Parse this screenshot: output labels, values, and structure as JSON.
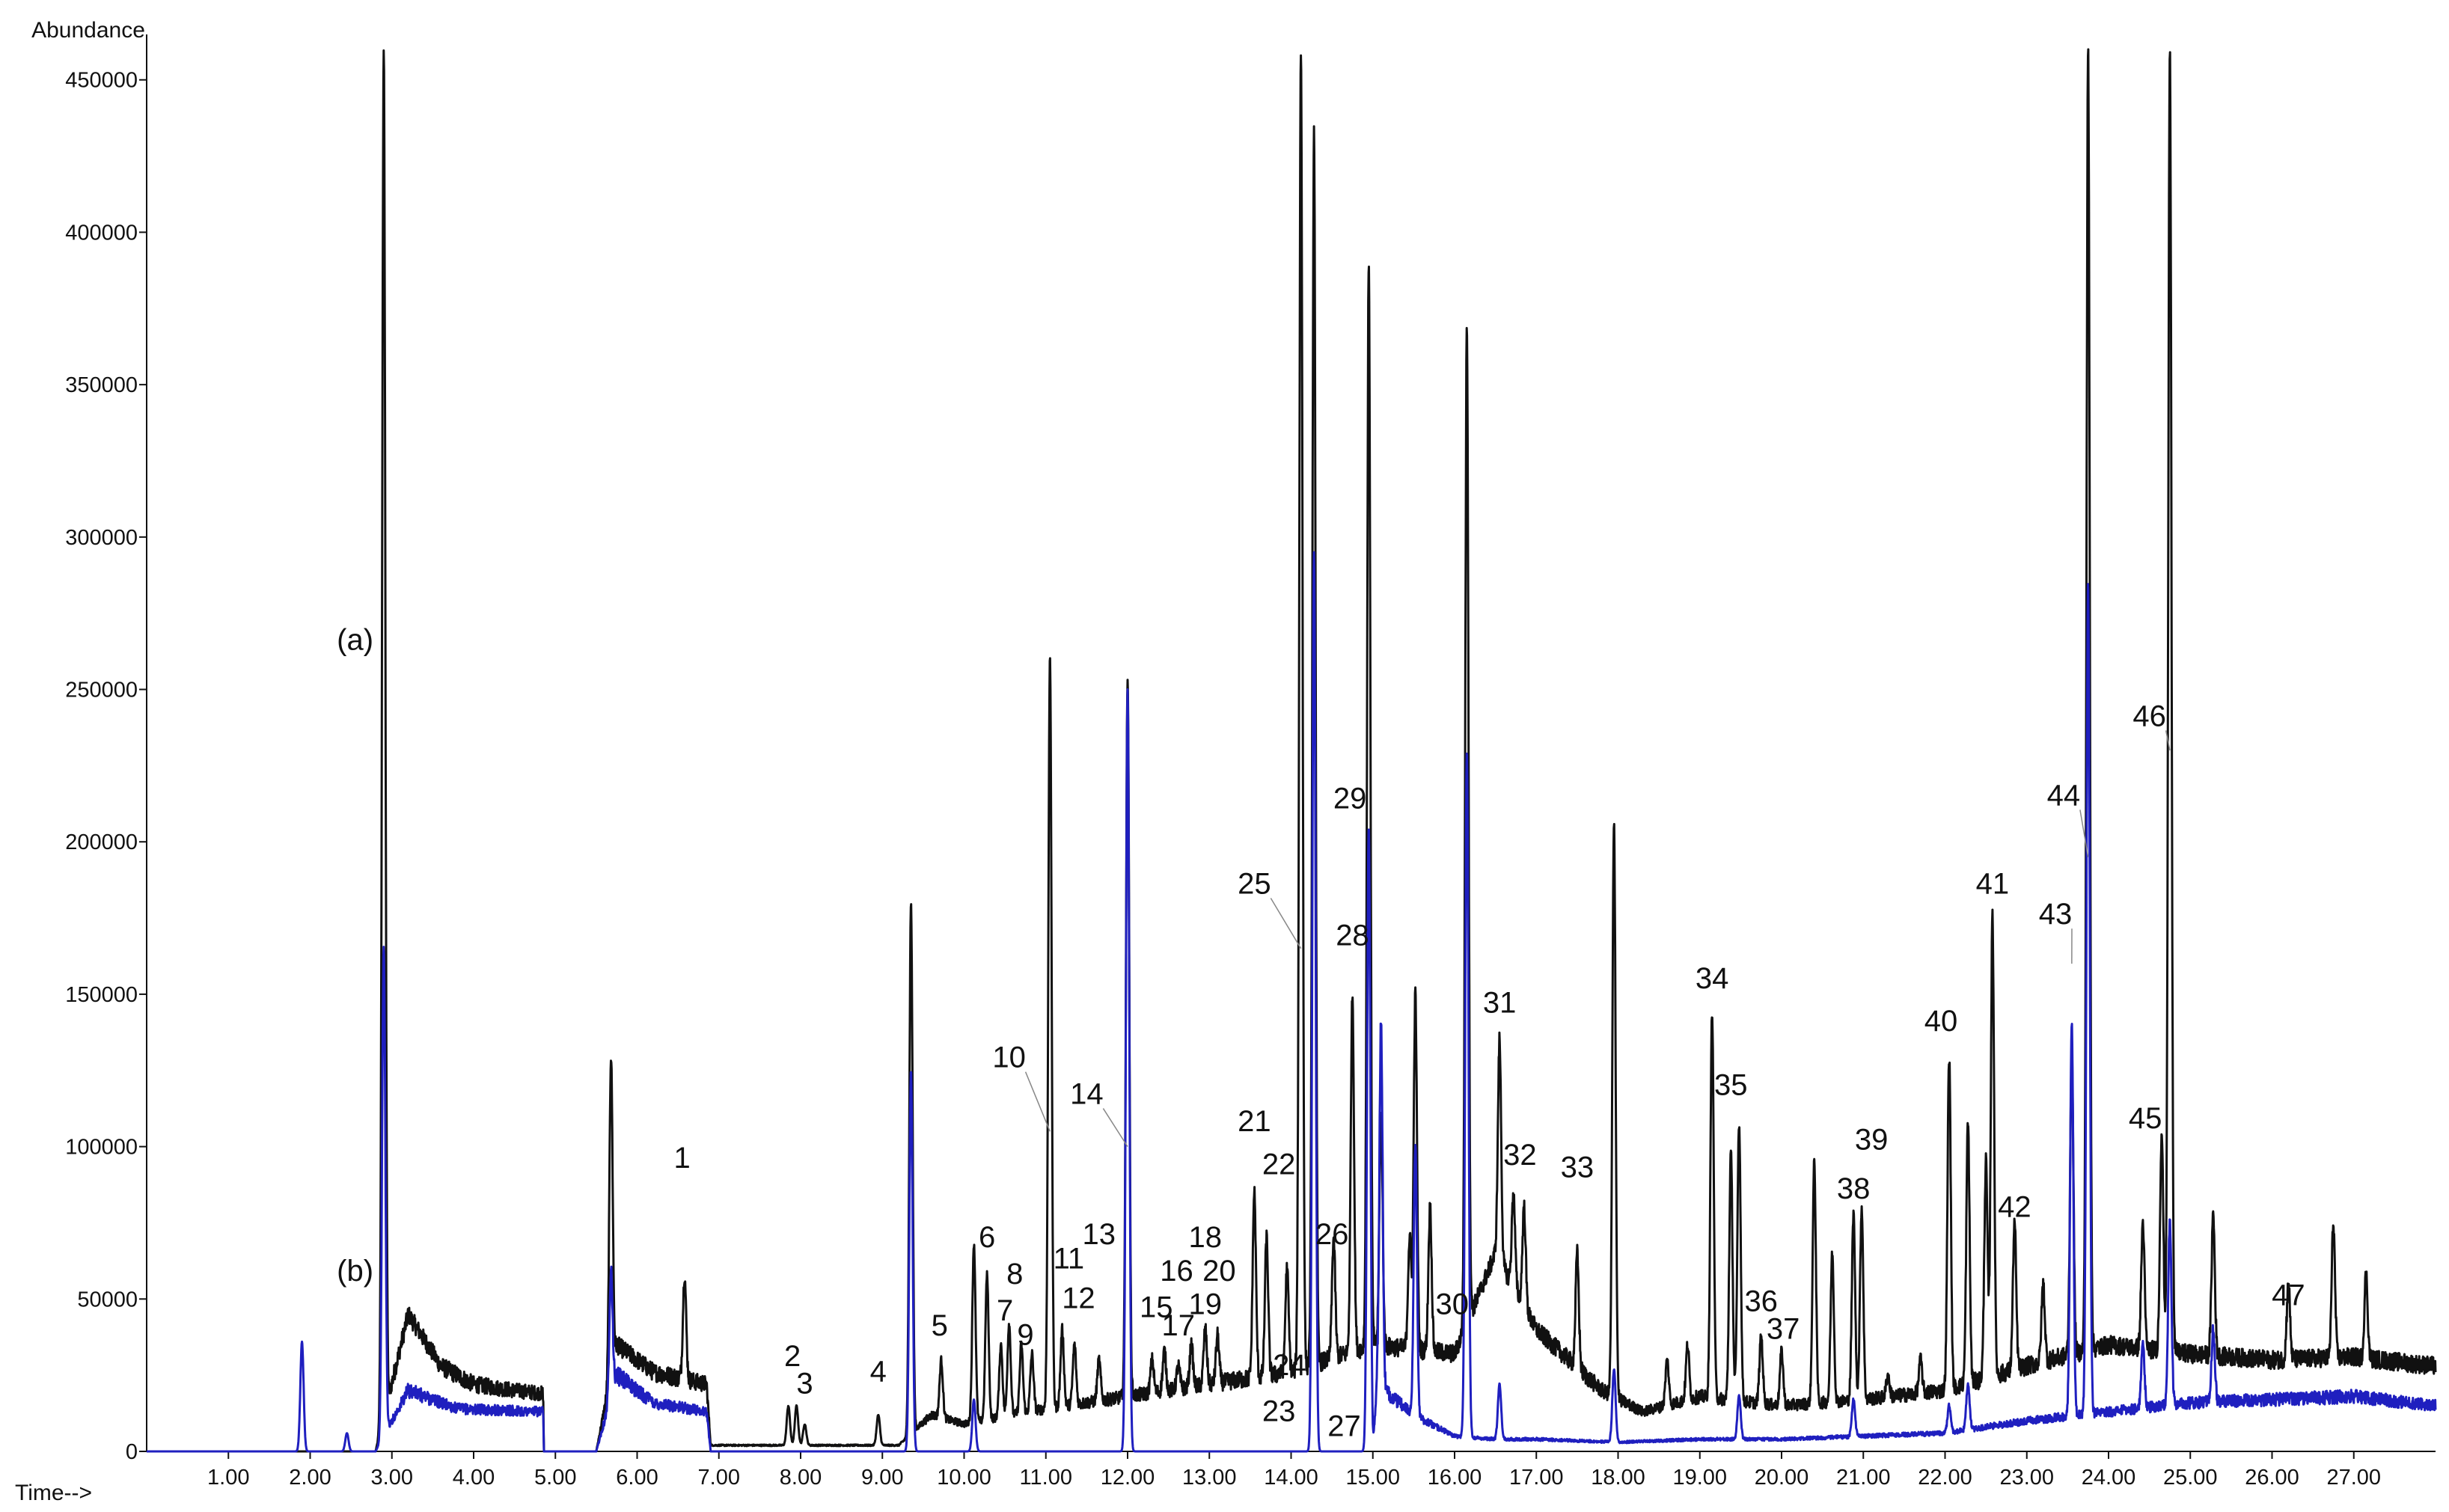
{
  "chart_data": {
    "type": "line",
    "ylabel": "Abundance",
    "xlabel": "Time-->",
    "xlim": [
      0,
      28.0
    ],
    "ylim": [
      0,
      460000
    ],
    "x_ticks": [
      1.0,
      2.0,
      3.0,
      4.0,
      5.0,
      6.0,
      7.0,
      8.0,
      9.0,
      10.0,
      11.0,
      12.0,
      13.0,
      14.0,
      15.0,
      16.0,
      17.0,
      18.0,
      19.0,
      20.0,
      21.0,
      22.0,
      23.0,
      24.0,
      25.0,
      26.0,
      27.0
    ],
    "x_tick_labels": [
      "1.00",
      "2.00",
      "3.00",
      "4.00",
      "5.00",
      "6.00",
      "7.00",
      "8.00",
      "9.00",
      "10.00",
      "11.00",
      "12.00",
      "13.00",
      "14.00",
      "15.00",
      "16.00",
      "17.00",
      "18.00",
      "19.00",
      "20.00",
      "21.00",
      "22.00",
      "23.00",
      "24.00",
      "25.00",
      "26.00",
      "27.00"
    ],
    "y_ticks": [
      0,
      50000,
      100000,
      150000,
      200000,
      250000,
      300000,
      350000,
      400000,
      450000
    ],
    "y_tick_labels": [
      "0",
      "50000",
      "100000",
      "150000",
      "200000",
      "250000",
      "300000",
      "350000",
      "400000",
      "450000"
    ],
    "grid": false,
    "series": [
      {
        "name": "(a)",
        "color": "#111111",
        "baseline": [
          [
            0.0,
            0
          ],
          [
            2.8,
            0
          ],
          [
            3.2,
            45000
          ],
          [
            3.6,
            28000
          ],
          [
            4.0,
            22000
          ],
          [
            4.5,
            20000
          ],
          [
            4.85,
            19000
          ],
          [
            4.86,
            0
          ],
          [
            5.5,
            0
          ],
          [
            5.75,
            35000
          ],
          [
            6.2,
            26000
          ],
          [
            6.85,
            22000
          ],
          [
            6.9,
            2000
          ],
          [
            9.2,
            2000
          ],
          [
            9.6,
            12000
          ],
          [
            10.0,
            9000
          ],
          [
            11.0,
            14000
          ],
          [
            12.0,
            18000
          ],
          [
            13.0,
            22000
          ],
          [
            14.0,
            26000
          ],
          [
            15.0,
            35000
          ],
          [
            16.0,
            32000
          ],
          [
            16.5,
            65000
          ],
          [
            17.0,
            40000
          ],
          [
            17.8,
            20000
          ],
          [
            18.3,
            13000
          ],
          [
            19.0,
            18000
          ],
          [
            20.0,
            15000
          ],
          [
            21.0,
            17000
          ],
          [
            22.0,
            20000
          ],
          [
            23.0,
            28000
          ],
          [
            24.0,
            35000
          ],
          [
            25.0,
            32000
          ],
          [
            26.0,
            30000
          ],
          [
            27.0,
            31000
          ],
          [
            28.0,
            28000
          ]
        ],
        "peaks": [
          [
            2.9,
            460000
          ],
          [
            5.68,
            130000
          ],
          [
            6.58,
            58000
          ],
          [
            7.85,
            15000
          ],
          [
            7.95,
            15000
          ],
          [
            8.05,
            9000
          ],
          [
            8.95,
            12000
          ],
          [
            9.35,
            180000
          ],
          [
            9.72,
            30000
          ],
          [
            10.12,
            68000
          ],
          [
            10.28,
            58000
          ],
          [
            10.45,
            35000
          ],
          [
            10.55,
            42000
          ],
          [
            10.7,
            35000
          ],
          [
            10.83,
            32000
          ],
          [
            11.05,
            262000
          ],
          [
            11.2,
            40000
          ],
          [
            11.35,
            35000
          ],
          [
            11.65,
            30000
          ],
          [
            12.0,
            255000
          ],
          [
            12.3,
            30000
          ],
          [
            12.45,
            33000
          ],
          [
            12.62,
            28000
          ],
          [
            12.78,
            35000
          ],
          [
            12.95,
            40000
          ],
          [
            13.1,
            38000
          ],
          [
            13.55,
            85000
          ],
          [
            13.7,
            70000
          ],
          [
            13.95,
            60000
          ],
          [
            14.12,
            460000
          ],
          [
            14.28,
            432000
          ],
          [
            14.52,
            70000
          ],
          [
            14.75,
            150000
          ],
          [
            14.95,
            390000
          ],
          [
            15.1,
            110000
          ],
          [
            15.45,
            70000
          ],
          [
            15.52,
            150000
          ],
          [
            15.7,
            80000
          ],
          [
            16.15,
            370000
          ],
          [
            16.55,
            135000
          ],
          [
            16.72,
            85000
          ],
          [
            16.85,
            80000
          ],
          [
            17.5,
            65000
          ],
          [
            17.95,
            205000
          ],
          [
            18.6,
            30000
          ],
          [
            18.85,
            35000
          ],
          [
            19.15,
            145000
          ],
          [
            19.38,
            98000
          ],
          [
            19.48,
            108000
          ],
          [
            19.75,
            38000
          ],
          [
            20.0,
            33000
          ],
          [
            20.4,
            95000
          ],
          [
            20.62,
            65000
          ],
          [
            20.88,
            78000
          ],
          [
            20.98,
            80000
          ],
          [
            21.3,
            25000
          ],
          [
            21.7,
            30000
          ],
          [
            22.05,
            130000
          ],
          [
            22.28,
            108000
          ],
          [
            22.5,
            95000
          ],
          [
            22.58,
            176000
          ],
          [
            22.85,
            75000
          ],
          [
            23.2,
            55000
          ],
          [
            23.55,
            132000
          ],
          [
            23.75,
            460000
          ],
          [
            24.42,
            75000
          ],
          [
            24.65,
            105000
          ],
          [
            24.75,
            460000
          ],
          [
            25.28,
            78000
          ],
          [
            26.2,
            55000
          ],
          [
            26.75,
            75000
          ],
          [
            27.15,
            58000
          ]
        ]
      },
      {
        "name": "(b)",
        "color": "#1f1fbf",
        "baseline": [
          [
            0.0,
            0
          ],
          [
            2.8,
            0
          ],
          [
            3.2,
            20000
          ],
          [
            3.8,
            14000
          ],
          [
            4.85,
            13000
          ],
          [
            4.86,
            0
          ],
          [
            5.5,
            0
          ],
          [
            5.75,
            25000
          ],
          [
            6.2,
            16000
          ],
          [
            6.85,
            13000
          ],
          [
            6.9,
            0
          ],
          [
            15.0,
            0
          ],
          [
            15.05,
            22000
          ],
          [
            15.5,
            12000
          ],
          [
            16.0,
            5000
          ],
          [
            16.5,
            4000
          ],
          [
            17.0,
            4000
          ],
          [
            18.0,
            3000
          ],
          [
            19.0,
            4000
          ],
          [
            20.0,
            4000
          ],
          [
            21.0,
            5000
          ],
          [
            22.0,
            6000
          ],
          [
            23.0,
            10000
          ],
          [
            24.0,
            13000
          ],
          [
            25.0,
            16000
          ],
          [
            26.0,
            17000
          ],
          [
            27.0,
            18000
          ],
          [
            28.0,
            15000
          ]
        ],
        "peaks": [
          [
            1.9,
            36000
          ],
          [
            2.45,
            6000
          ],
          [
            2.9,
            165000
          ],
          [
            5.68,
            60000
          ],
          [
            9.35,
            125000
          ],
          [
            10.12,
            17000
          ],
          [
            12.0,
            250000
          ],
          [
            14.28,
            295000
          ],
          [
            14.95,
            205000
          ],
          [
            15.1,
            140000
          ],
          [
            15.52,
            100000
          ],
          [
            16.15,
            230000
          ],
          [
            16.55,
            22000
          ],
          [
            17.95,
            27000
          ],
          [
            19.48,
            18000
          ],
          [
            20.88,
            17000
          ],
          [
            22.05,
            15000
          ],
          [
            22.28,
            22000
          ],
          [
            23.55,
            140000
          ],
          [
            23.75,
            285000
          ],
          [
            24.42,
            35000
          ],
          [
            24.75,
            75000
          ],
          [
            25.28,
            40000
          ]
        ]
      }
    ],
    "curve_labels": [
      {
        "text": "(a)",
        "x": 2.55,
        "y": 263000
      },
      {
        "text": "(b)",
        "x": 2.55,
        "y": 56000
      }
    ],
    "peak_labels": [
      {
        "text": "1",
        "x": 6.55,
        "y": 93000
      },
      {
        "text": "2",
        "x": 7.9,
        "y": 28000
      },
      {
        "text": "3",
        "x": 8.05,
        "y": 19000
      },
      {
        "text": "4",
        "x": 8.95,
        "y": 23000
      },
      {
        "text": "5",
        "x": 9.7,
        "y": 38000
      },
      {
        "text": "6",
        "x": 10.28,
        "y": 67000
      },
      {
        "text": "7",
        "x": 10.5,
        "y": 43000
      },
      {
        "text": "8",
        "x": 10.62,
        "y": 55000
      },
      {
        "text": "9",
        "x": 10.75,
        "y": 35000
      },
      {
        "text": "10",
        "x": 10.55,
        "y": 126000,
        "tx": 11.05,
        "ty": 105000
      },
      {
        "text": "11",
        "x": 11.28,
        "y": 60000
      },
      {
        "text": "12",
        "x": 11.4,
        "y": 47000
      },
      {
        "text": "13",
        "x": 11.65,
        "y": 68000
      },
      {
        "text": "14",
        "x": 11.5,
        "y": 114000,
        "tx": 12.0,
        "ty": 100000
      },
      {
        "text": "15",
        "x": 12.35,
        "y": 44000
      },
      {
        "text": "16",
        "x": 12.6,
        "y": 56000
      },
      {
        "text": "17",
        "x": 12.62,
        "y": 38000
      },
      {
        "text": "18",
        "x": 12.95,
        "y": 67000
      },
      {
        "text": "19",
        "x": 12.95,
        "y": 45000
      },
      {
        "text": "20",
        "x": 13.12,
        "y": 56000
      },
      {
        "text": "21",
        "x": 13.55,
        "y": 105000
      },
      {
        "text": "22",
        "x": 13.85,
        "y": 91000
      },
      {
        "text": "23",
        "x": 13.85,
        "y": 10000
      },
      {
        "text": "24",
        "x": 13.98,
        "y": 25000
      },
      {
        "text": "25",
        "x": 13.55,
        "y": 183000,
        "tx": 14.12,
        "ty": 165000
      },
      {
        "text": "26",
        "x": 14.5,
        "y": 68000
      },
      {
        "text": "27",
        "x": 14.65,
        "y": 5000
      },
      {
        "text": "28",
        "x": 14.75,
        "y": 166000
      },
      {
        "text": "29",
        "x": 14.72,
        "y": 211000
      },
      {
        "text": "30",
        "x": 15.97,
        "y": 45000
      },
      {
        "text": "31",
        "x": 16.55,
        "y": 144000
      },
      {
        "text": "32",
        "x": 16.8,
        "y": 94000
      },
      {
        "text": "33",
        "x": 17.5,
        "y": 90000
      },
      {
        "text": "34",
        "x": 19.15,
        "y": 152000
      },
      {
        "text": "35",
        "x": 19.38,
        "y": 117000
      },
      {
        "text": "36",
        "x": 19.75,
        "y": 46000
      },
      {
        "text": "37",
        "x": 20.02,
        "y": 37000
      },
      {
        "text": "38",
        "x": 20.88,
        "y": 83000
      },
      {
        "text": "39",
        "x": 21.1,
        "y": 99000
      },
      {
        "text": "40",
        "x": 21.95,
        "y": 138000
      },
      {
        "text": "41",
        "x": 22.58,
        "y": 183000
      },
      {
        "text": "42",
        "x": 22.85,
        "y": 77000
      },
      {
        "text": "43",
        "x": 23.35,
        "y": 173000,
        "tx": 23.55,
        "ty": 160000
      },
      {
        "text": "44",
        "x": 23.45,
        "y": 212000,
        "tx": 23.75,
        "ty": 195000
      },
      {
        "text": "45",
        "x": 24.45,
        "y": 106000
      },
      {
        "text": "46",
        "x": 24.5,
        "y": 238000,
        "tx": 24.75,
        "ty": 230000
      },
      {
        "text": "47",
        "x": 26.2,
        "y": 48000
      }
    ]
  }
}
